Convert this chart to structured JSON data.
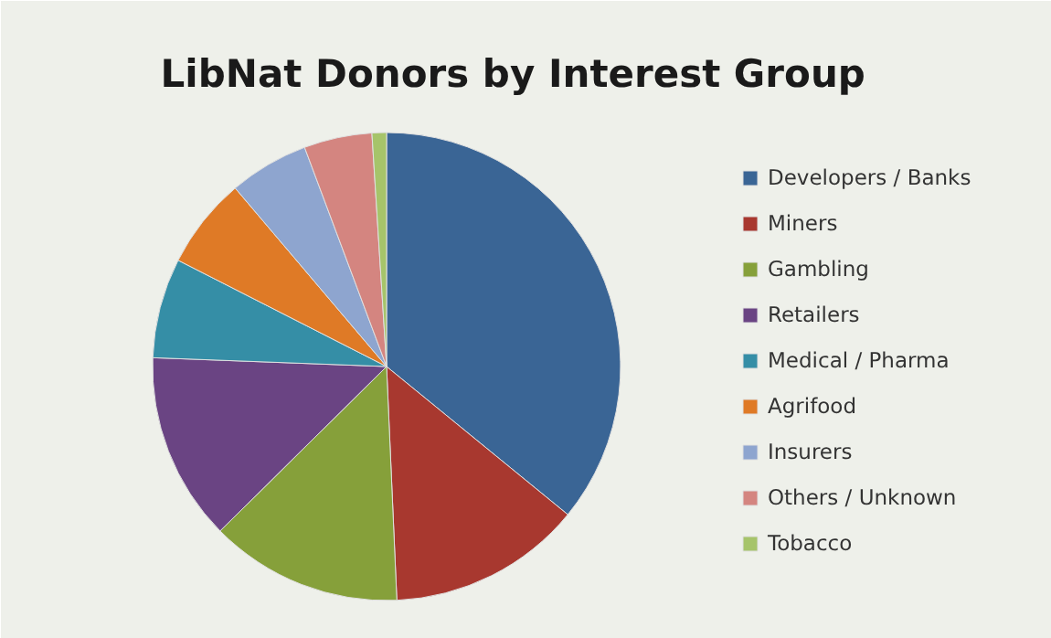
{
  "chart_data": {
    "type": "pie",
    "title": "LibNat Donors by Interest Group",
    "categories": [
      "Developers / Banks",
      "Miners",
      "Gambling",
      "Retailers",
      "Medical / Pharma",
      "Agrifood",
      "Insurers",
      "Others / Unknown",
      "Tobacco"
    ],
    "values": [
      35.9,
      13.4,
      13.3,
      13.0,
      6.9,
      6.3,
      5.5,
      4.7,
      1.0
    ],
    "colors": [
      "#3a6595",
      "#a8382f",
      "#86a03a",
      "#6a4483",
      "#358ea6",
      "#df7a26",
      "#8ea5cf",
      "#d48580",
      "#a6c46a"
    ],
    "legend": "right"
  }
}
